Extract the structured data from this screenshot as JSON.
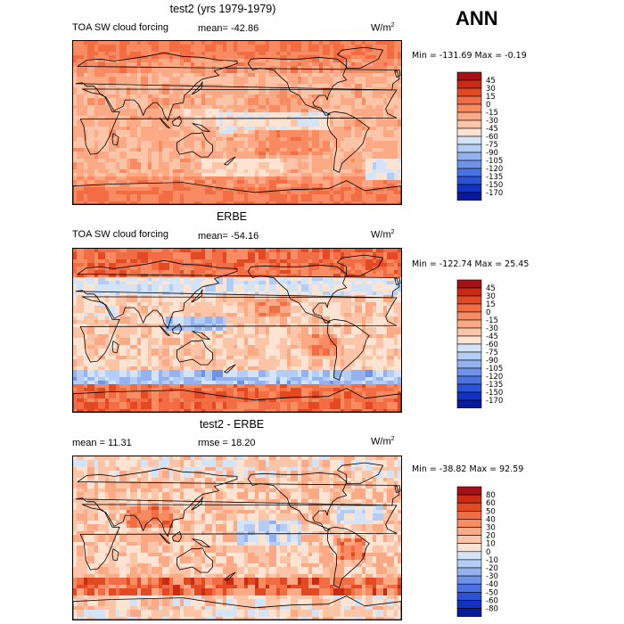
{
  "header": {
    "season": "ANN"
  },
  "panels": [
    {
      "title": "test2 (yrs 1979-1979)",
      "left_label": "TOA SW cloud forcing",
      "mean_label": "mean= -42.86",
      "rmse_label": "",
      "units_base": "W/m",
      "units_sup": "2",
      "minmax": "Min = -131.69 Max =  -0.19",
      "colorbar_labels": [
        "45",
        "30",
        "15",
        "0",
        "-15",
        "-30",
        "-45",
        "-60",
        "-75",
        "-90",
        "-105",
        "-120",
        "-135",
        "-150",
        "-170"
      ],
      "colorbar_colors": [
        "#a50f15",
        "#cb2a14",
        "#e34a23",
        "#f26d43",
        "#f88b62",
        "#fbaa85",
        "#fdc5a8",
        "#fde3d2",
        "#d3e4f8",
        "#b4cdf5",
        "#94b2f0",
        "#6f93ea",
        "#4b72e3",
        "#2a52d6",
        "#1233c2",
        "#081a9c"
      ],
      "map_style": "model"
    },
    {
      "title": "ERBE",
      "left_label": "TOA SW cloud forcing",
      "mean_label": "mean= -54.16",
      "rmse_label": "",
      "units_base": "W/m",
      "units_sup": "2",
      "minmax": "Min = -122.74 Max =  25.45",
      "colorbar_labels": [
        "45",
        "30",
        "15",
        "0",
        "-15",
        "-30",
        "-45",
        "-60",
        "-75",
        "-90",
        "-105",
        "-120",
        "-135",
        "-150",
        "-170"
      ],
      "colorbar_colors": [
        "#a50f15",
        "#cb2a14",
        "#e34a23",
        "#f26d43",
        "#f88b62",
        "#fbaa85",
        "#fdc5a8",
        "#fde3d2",
        "#d3e4f8",
        "#b4cdf5",
        "#94b2f0",
        "#6f93ea",
        "#4b72e3",
        "#2a52d6",
        "#1233c2",
        "#081a9c"
      ],
      "map_style": "obs"
    },
    {
      "title": "test2 - ERBE",
      "left_label": "mean =  11.31",
      "mean_label": "",
      "rmse_label": "rmse =  18.20",
      "units_base": "W/m",
      "units_sup": "2",
      "minmax": "Min = -38.82 Max =  92.59",
      "colorbar_labels": [
        "80",
        "60",
        "50",
        "40",
        "30",
        "20",
        "10",
        "0",
        "-10",
        "-20",
        "-30",
        "-40",
        "-50",
        "-60",
        "-80"
      ],
      "colorbar_colors": [
        "#a50f15",
        "#cb2a14",
        "#e34a23",
        "#f26d43",
        "#f88b62",
        "#fbaa85",
        "#fdc5a8",
        "#fde3d2",
        "#d3e4f8",
        "#b4cdf5",
        "#94b2f0",
        "#6f93ea",
        "#4b72e3",
        "#2a52d6",
        "#1233c2",
        "#081a9c"
      ],
      "map_style": "diff"
    }
  ],
  "chart_data": [
    {
      "type": "heatmap",
      "title": "test2 (yrs 1979-1979)",
      "variable": "TOA SW cloud forcing",
      "units": "W/m2",
      "mean": -42.86,
      "min": -131.69,
      "max": -0.19,
      "levels": [
        45,
        30,
        15,
        0,
        -15,
        -30,
        -45,
        -60,
        -75,
        -90,
        -105,
        -120,
        -135,
        -150,
        -170
      ]
    },
    {
      "type": "heatmap",
      "title": "ERBE",
      "variable": "TOA SW cloud forcing",
      "units": "W/m2",
      "mean": -54.16,
      "min": -122.74,
      "max": 25.45,
      "levels": [
        45,
        30,
        15,
        0,
        -15,
        -30,
        -45,
        -60,
        -75,
        -90,
        -105,
        -120,
        -135,
        -150,
        -170
      ]
    },
    {
      "type": "heatmap",
      "title": "test2 - ERBE",
      "units": "W/m2",
      "mean": 11.31,
      "rmse": 18.2,
      "min": -38.82,
      "max": 92.59,
      "levels": [
        80,
        60,
        50,
        40,
        30,
        20,
        10,
        0,
        -10,
        -20,
        -30,
        -40,
        -50,
        -60,
        -80
      ]
    }
  ]
}
